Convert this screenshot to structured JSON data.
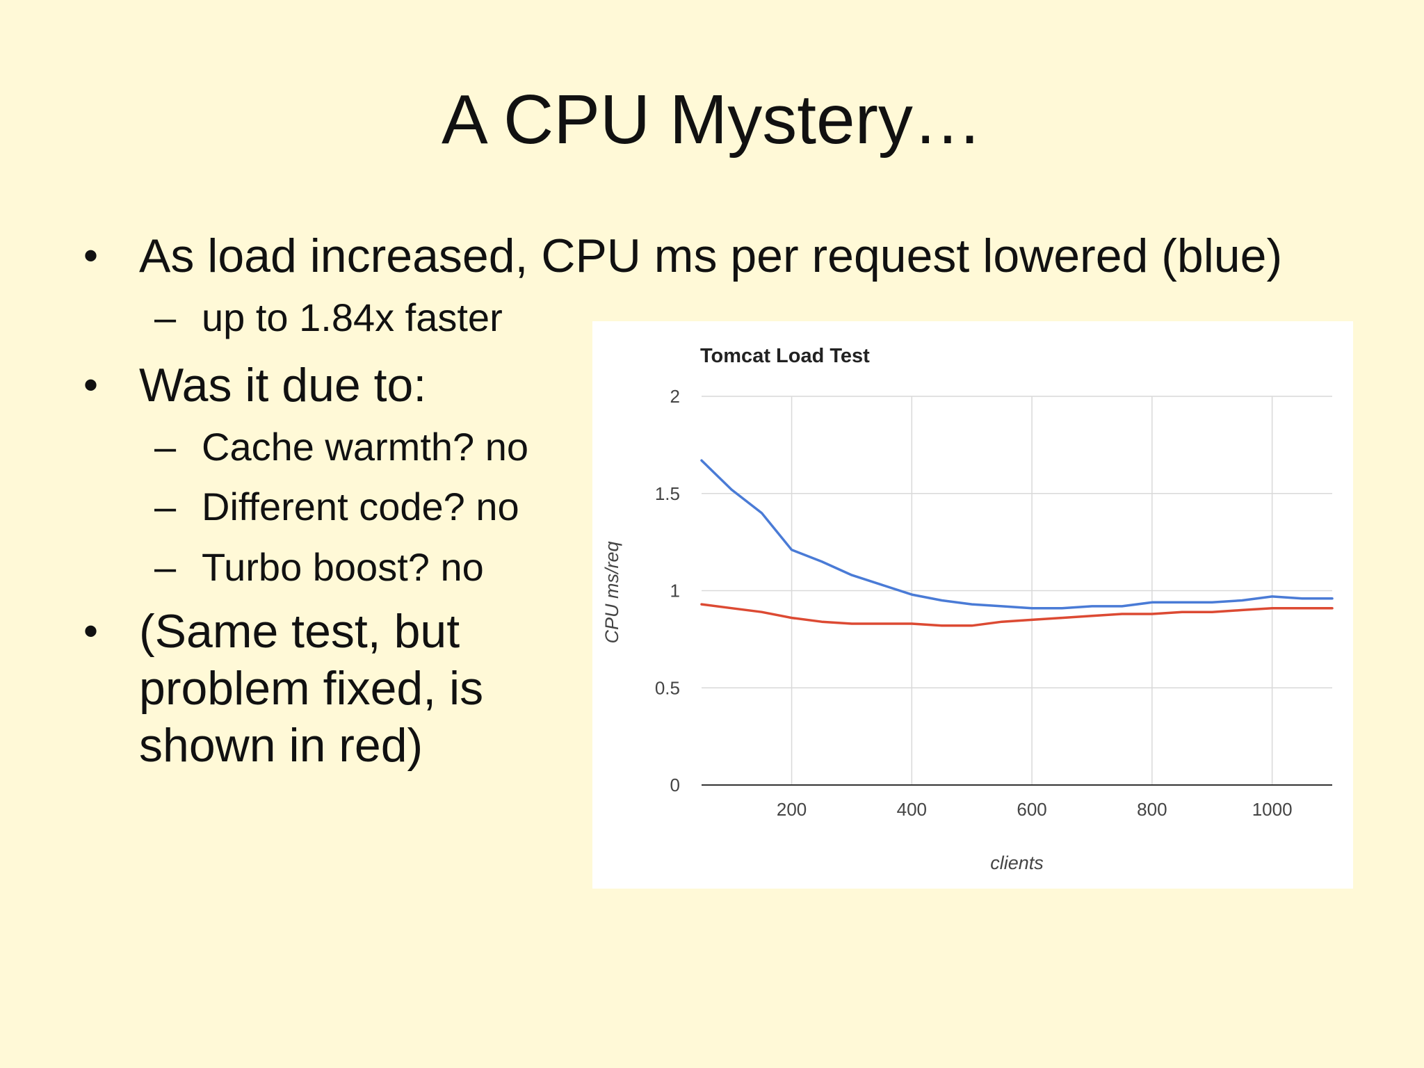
{
  "slide": {
    "title": "A CPU Mystery…",
    "bullet_marker": "•",
    "dash_marker": "–",
    "bullets": [
      {
        "text": "As load increased, CPU ms per request lowered (blue)"
      },
      {
        "sub": "up to 1.84x faster"
      },
      {
        "text": "Was it due to:"
      },
      {
        "sub": "Cache warmth? no"
      },
      {
        "sub": "Different code? no"
      },
      {
        "sub": "Turbo boost? no"
      },
      {
        "text_lines": [
          "(Same test, but",
          "problem fixed, is",
          "shown in red)"
        ]
      }
    ]
  },
  "chart_data": {
    "type": "line",
    "title": "Tomcat Load Test",
    "xlabel": "clients",
    "ylabel": "CPU ms/req",
    "xlim": [
      50,
      1100
    ],
    "ylim": [
      0,
      2
    ],
    "x_ticks": [
      200,
      400,
      600,
      800,
      1000
    ],
    "y_ticks": [
      0,
      0.5,
      1,
      1.5,
      2
    ],
    "grid": true,
    "legend": "none",
    "series": [
      {
        "color": "#4a7bd6",
        "x": [
          50,
          100,
          150,
          200,
          250,
          300,
          350,
          400,
          450,
          500,
          550,
          600,
          650,
          700,
          750,
          800,
          850,
          900,
          950,
          1000,
          1050,
          1100
        ],
        "values": [
          1.67,
          1.52,
          1.4,
          1.21,
          1.15,
          1.08,
          1.03,
          0.98,
          0.95,
          0.93,
          0.92,
          0.91,
          0.91,
          0.92,
          0.92,
          0.94,
          0.94,
          0.94,
          0.95,
          0.97,
          0.96,
          0.96
        ]
      },
      {
        "color": "#dc4a33",
        "x": [
          50,
          100,
          150,
          200,
          250,
          300,
          350,
          400,
          450,
          500,
          550,
          600,
          650,
          700,
          750,
          800,
          850,
          900,
          950,
          1000,
          1050,
          1100
        ],
        "values": [
          0.93,
          0.91,
          0.89,
          0.86,
          0.84,
          0.83,
          0.83,
          0.83,
          0.82,
          0.82,
          0.84,
          0.85,
          0.86,
          0.87,
          0.88,
          0.88,
          0.89,
          0.89,
          0.9,
          0.91,
          0.91,
          0.91
        ]
      }
    ]
  }
}
